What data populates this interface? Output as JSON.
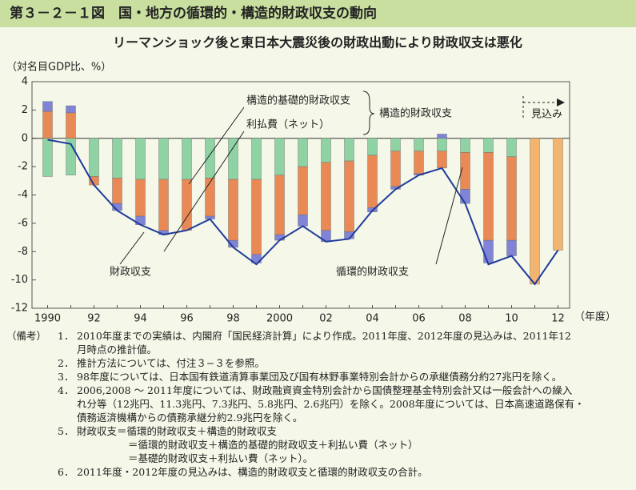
{
  "header": {
    "title": "第３－２－１図　国・地方の循環的・構造的財政収支の動向"
  },
  "chart_data": {
    "type": "bar",
    "title": "リーマンショック後と東日本大震災後の財政出動により財政収支は悪化",
    "y_label": "（対名目GDP比、%）",
    "x_label": "（年度）",
    "categories": [
      "1990",
      null,
      "92",
      null,
      "94",
      null,
      "96",
      null,
      "98",
      null,
      "2000",
      null,
      "02",
      null,
      "04",
      null,
      "06",
      null,
      "08",
      null,
      "10",
      null,
      "12"
    ],
    "series": [
      {
        "name": "循環的財政収支",
        "color": "#8fd3a4",
        "values": [
          -2.7,
          -2.6,
          -2.7,
          -2.8,
          -2.9,
          -2.9,
          -2.9,
          -2.8,
          -2.9,
          -2.9,
          -2.6,
          -2.0,
          -1.7,
          -1.6,
          -1.2,
          -0.9,
          -0.9,
          -0.9,
          -1.0,
          -1.0,
          -1.3,
          null,
          null
        ]
      },
      {
        "name": "構造的基礎的財政収支",
        "color": "#e98a56",
        "values": [
          1.9,
          1.8,
          -0.6,
          -1.8,
          -2.6,
          -3.6,
          -3.6,
          -2.7,
          -4.3,
          -5.3,
          -4.2,
          -3.4,
          -4.8,
          -5.0,
          -3.7,
          -2.5,
          -1.6,
          -1.2,
          -2.6,
          -6.2,
          -5.9,
          null,
          null
        ]
      },
      {
        "name": "利払費（ネット）",
        "color": "#8083d6",
        "values": [
          0.7,
          0.5,
          0,
          -0.5,
          -0.6,
          -0.3,
          0,
          -0.2,
          -0.5,
          -0.6,
          -0.4,
          -0.8,
          -0.8,
          -0.5,
          -0.3,
          -0.2,
          -0.1,
          0.3,
          -1.0,
          -1.6,
          -1.1,
          null,
          null
        ]
      },
      {
        "name": "見込み",
        "color": "#f2b46e",
        "values": [
          null,
          null,
          null,
          null,
          null,
          null,
          null,
          null,
          null,
          null,
          null,
          null,
          null,
          null,
          null,
          null,
          null,
          null,
          null,
          null,
          null,
          -10.3,
          -7.9
        ]
      }
    ],
    "line": {
      "name": "財政収支",
      "color": "#1f3b9c",
      "values": [
        -0.1,
        -0.4,
        -3.3,
        -5.1,
        -6.1,
        -6.8,
        -6.5,
        -5.7,
        -7.7,
        -8.9,
        -7.2,
        -6.2,
        -7.3,
        -7.1,
        -5.1,
        -3.6,
        -2.6,
        -2.1,
        -4.6,
        -8.9,
        -8.3,
        -10.3,
        -7.9
      ]
    },
    "annotation": "構造的財政収支",
    "ylim": [
      -12,
      4
    ],
    "yticks": [
      -12,
      -10,
      -8,
      -6,
      -4,
      -2,
      0,
      2,
      4
    ]
  },
  "notes": {
    "label": "（備考）",
    "items": [
      {
        "num": "1．",
        "lines": [
          "2010年度までの実績は、内閣府「国民経済計算」により作成。2011年度、2012年度の見込みは、2011年12",
          "月時点の推計値。"
        ]
      },
      {
        "num": "2．",
        "lines": [
          "推計方法については、付注３−３を参照。"
        ]
      },
      {
        "num": "3．",
        "lines": [
          "98年度については、日本国有鉄道清算事業団及び国有林野事業特別会計からの承継債務分約27兆円を除く。"
        ]
      },
      {
        "num": "4．",
        "lines": [
          "2006,2008 〜 2011年度については、財政融資資金特別会計から国債整理基金特別会計又は一般会計への繰入",
          "れ分等（12兆円、11.3兆円、7.3兆円、5.8兆円、2.6兆円）を除く。2008年度については、日本高速道路保有・",
          "債務返済機構からの債務承継分約2.9兆円を除く。"
        ]
      },
      {
        "num": "5．",
        "lines": [
          "財政収支＝循環的財政収支＋構造的財政収支",
          "＝循環的財政収支＋構造的基礎的財政収支＋利払い費（ネット）",
          "＝基礎的財政収支＋利払い費（ネット）。"
        ]
      },
      {
        "num": "6．",
        "lines": [
          "2011年度・2012年度の見込みは、構造的財政収支と循環的財政収支の合計。"
        ]
      }
    ]
  }
}
